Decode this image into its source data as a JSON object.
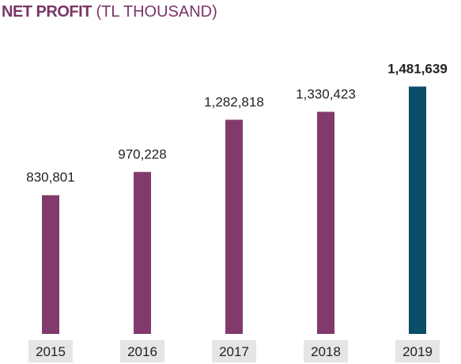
{
  "title": {
    "bold": "NET PROFIT",
    "light": " (TL THOUSAND)"
  },
  "chart_data": {
    "type": "bar",
    "categories": [
      "2015",
      "2016",
      "2017",
      "2018",
      "2019"
    ],
    "values": [
      830801,
      970228,
      1282818,
      1330423,
      1481639
    ],
    "value_labels": [
      "830,801",
      "970,228",
      "1,282,818",
      "1,330,423",
      "1,481,639"
    ],
    "highlight_index": 4,
    "ylim": [
      0,
      1800000
    ],
    "grid": false,
    "legend": "none",
    "colors": {
      "bar": "#823a6c",
      "highlight": "#0a4d69",
      "label_box": "#e5e5e5",
      "title": "#7a3566"
    }
  }
}
